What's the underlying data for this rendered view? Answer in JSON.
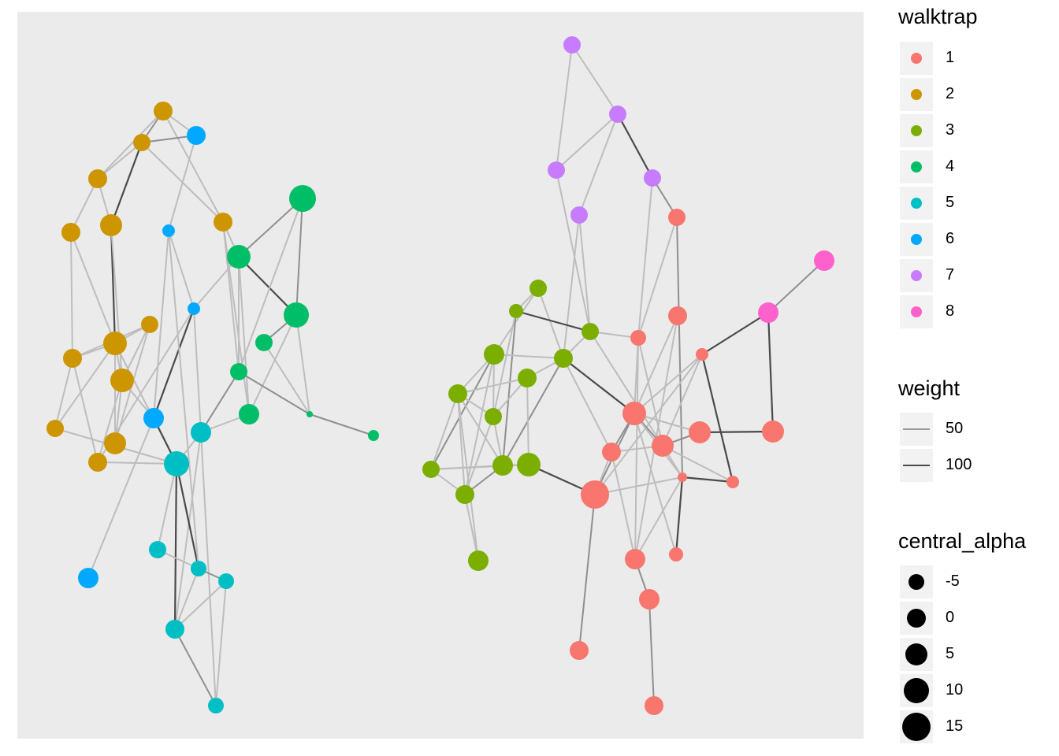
{
  "legend": {
    "walktrap": {
      "title": "walktrap",
      "entries": [
        {
          "label": "1",
          "color": "#F8766D"
        },
        {
          "label": "2",
          "color": "#CD9600"
        },
        {
          "label": "3",
          "color": "#7CAE00"
        },
        {
          "label": "4",
          "color": "#00BE67"
        },
        {
          "label": "5",
          "color": "#00BFC4"
        },
        {
          "label": "6",
          "color": "#00A9FF"
        },
        {
          "label": "7",
          "color": "#C77CFF"
        },
        {
          "label": "8",
          "color": "#FF61CC"
        }
      ]
    },
    "weight": {
      "title": "weight",
      "entries": [
        {
          "label": "50",
          "value": 50
        },
        {
          "label": "100",
          "value": 100
        }
      ]
    },
    "central_alpha": {
      "title": "central_alpha",
      "entries": [
        {
          "label": "-5",
          "value": -5
        },
        {
          "label": "0",
          "value": 0
        },
        {
          "label": "5",
          "value": 5
        },
        {
          "label": "10",
          "value": 10
        },
        {
          "label": "15",
          "value": 15
        }
      ]
    }
  }
}
